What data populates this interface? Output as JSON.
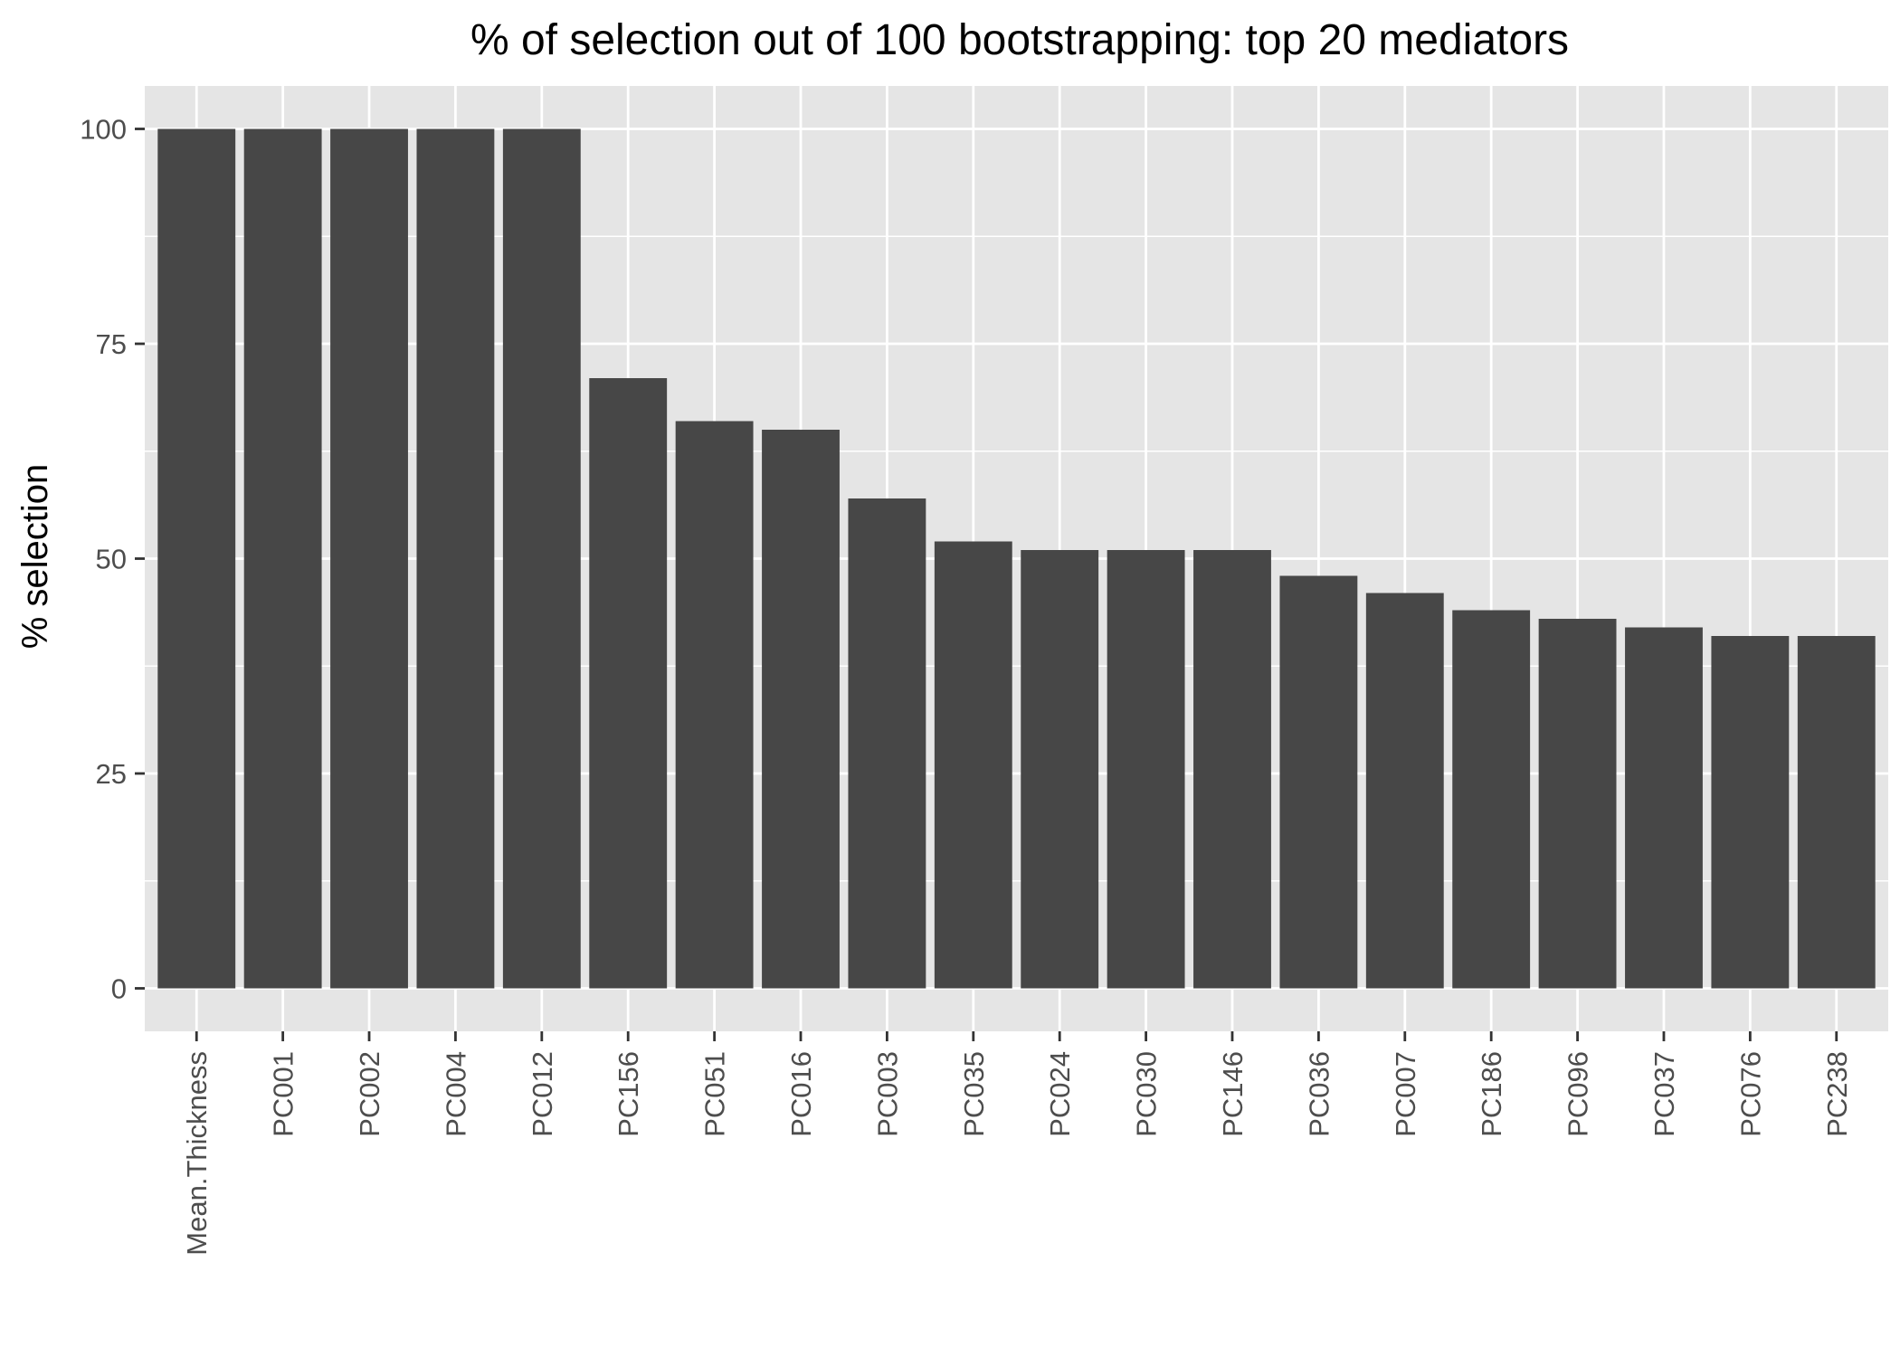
{
  "chart_data": {
    "type": "bar",
    "title": "% of selection out of 100 bootstrapping: top 20 mediators",
    "xlabel": "",
    "ylabel": "% selection",
    "categories": [
      "Mean.Thickness",
      "PC001",
      "PC002",
      "PC004",
      "PC012",
      "PC156",
      "PC051",
      "PC016",
      "PC003",
      "PC035",
      "PC024",
      "PC030",
      "PC146",
      "PC036",
      "PC007",
      "PC186",
      "PC096",
      "PC037",
      "PC076",
      "PC238"
    ],
    "values": [
      100,
      100,
      100,
      100,
      100,
      71,
      66,
      65,
      57,
      52,
      51,
      51,
      51,
      48,
      46,
      44,
      43,
      42,
      41,
      41
    ],
    "ylim": [
      -5,
      105
    ],
    "yticks": [
      0,
      25,
      50,
      75,
      100
    ],
    "grid": true,
    "legend": "none",
    "colors": {
      "bar": "#474747",
      "panel_background": "#e5e5e5",
      "grid": "#ffffff",
      "tick_text": "#4d4d4d",
      "tick_mark": "#333333"
    }
  }
}
